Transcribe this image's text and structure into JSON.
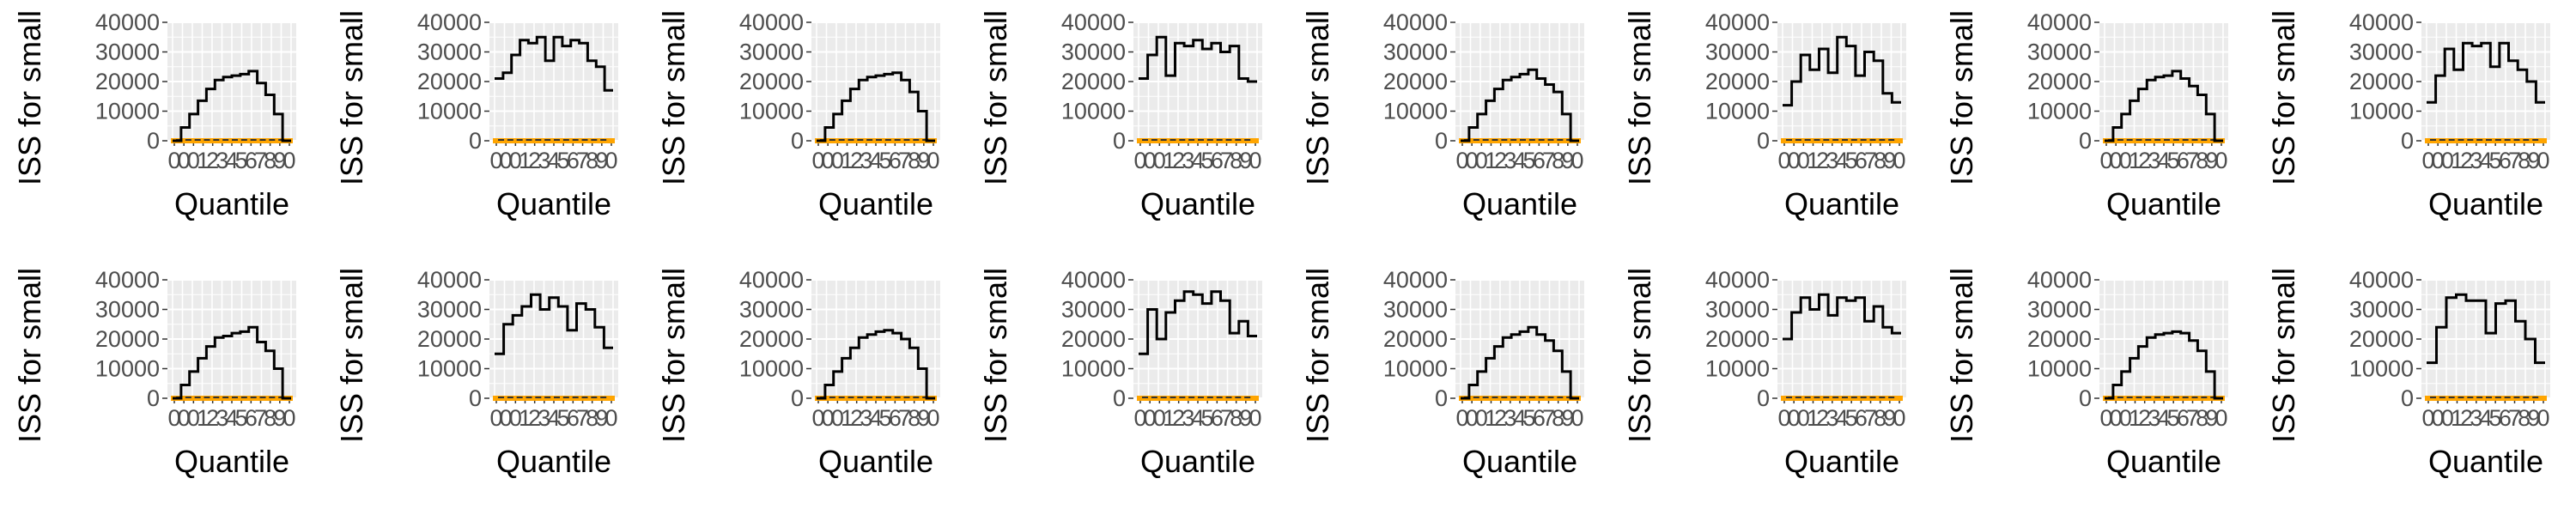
{
  "colors": {
    "panel_bg": "#EBEBEB",
    "gridline": "#FFFFFF",
    "step_line": "#000000",
    "band_fill": "#FFA500",
    "axis_text": "#4D4D4D",
    "title_text": "#000000"
  },
  "chart_data": [
    {
      "type": "line",
      "xlabel": "Quantile",
      "ylabel": "ISS for small in",
      "ylim": [
        0,
        40000
      ],
      "yticks": [
        "40000",
        "30000",
        "20000",
        "10000",
        "0"
      ],
      "xticks": [
        "0",
        "0",
        "0",
        "1",
        "2",
        "3",
        "4",
        "5",
        "6",
        "7",
        "8",
        "9",
        "0"
      ],
      "grid": true,
      "series": [
        {
          "values": [
            0,
            4500,
            9000,
            13500,
            17500,
            20500,
            21500,
            22000,
            22500,
            23500,
            19500,
            15500,
            9000,
            0
          ]
        }
      ]
    },
    {
      "type": "line",
      "xlabel": "Quantile",
      "ylabel": "ISS for small in",
      "ylim": [
        0,
        40000
      ],
      "yticks": [
        "40000",
        "30000",
        "20000",
        "10000",
        "0"
      ],
      "xticks": [
        "0",
        "0",
        "0",
        "1",
        "2",
        "3",
        "4",
        "5",
        "6",
        "7",
        "8",
        "9",
        "0"
      ],
      "grid": true,
      "series": [
        {
          "values": [
            21000,
            23000,
            29000,
            34000,
            33000,
            35000,
            27000,
            35000,
            32000,
            34000,
            33000,
            27000,
            25000,
            17000
          ]
        }
      ]
    },
    {
      "type": "line",
      "xlabel": "Quantile",
      "ylabel": "ISS for small in",
      "ylim": [
        0,
        40000
      ],
      "yticks": [
        "40000",
        "30000",
        "20000",
        "10000",
        "0"
      ],
      "xticks": [
        "0",
        "0",
        "0",
        "1",
        "2",
        "3",
        "4",
        "5",
        "6",
        "7",
        "8",
        "9",
        "0"
      ],
      "grid": true,
      "series": [
        {
          "values": [
            0,
            4500,
            9000,
            13500,
            17500,
            20500,
            21500,
            22000,
            22500,
            23000,
            20500,
            16500,
            10000,
            0
          ]
        }
      ]
    },
    {
      "type": "line",
      "xlabel": "Quantile",
      "ylabel": "ISS for small in",
      "ylim": [
        0,
        40000
      ],
      "yticks": [
        "40000",
        "30000",
        "20000",
        "10000",
        "0"
      ],
      "xticks": [
        "0",
        "0",
        "0",
        "1",
        "2",
        "3",
        "4",
        "5",
        "6",
        "7",
        "8",
        "9",
        "0"
      ],
      "grid": true,
      "series": [
        {
          "values": [
            21000,
            29000,
            35000,
            22000,
            33000,
            32000,
            34000,
            31000,
            33000,
            30000,
            32000,
            21000,
            20000
          ]
        }
      ]
    },
    {
      "type": "line",
      "xlabel": "Quantile",
      "ylabel": "ISS for small in",
      "ylim": [
        0,
        40000
      ],
      "yticks": [
        "40000",
        "30000",
        "20000",
        "10000",
        "0"
      ],
      "xticks": [
        "0",
        "0",
        "0",
        "1",
        "2",
        "3",
        "4",
        "5",
        "6",
        "7",
        "8",
        "9",
        "0"
      ],
      "grid": true,
      "series": [
        {
          "values": [
            0,
            4500,
            9000,
            13500,
            17500,
            20500,
            21500,
            22500,
            24000,
            21000,
            19000,
            16500,
            9000,
            0
          ]
        }
      ]
    },
    {
      "type": "line",
      "xlabel": "Quantile",
      "ylabel": "ISS for small in",
      "ylim": [
        0,
        40000
      ],
      "yticks": [
        "40000",
        "30000",
        "20000",
        "10000",
        "0"
      ],
      "xticks": [
        "0",
        "0",
        "0",
        "1",
        "2",
        "3",
        "4",
        "5",
        "6",
        "7",
        "8",
        "9",
        "0"
      ],
      "grid": true,
      "series": [
        {
          "values": [
            12000,
            20000,
            29000,
            24000,
            31000,
            23000,
            35000,
            32000,
            22000,
            30000,
            27000,
            16000,
            13000
          ]
        }
      ]
    },
    {
      "type": "line",
      "xlabel": "Quantile",
      "ylabel": "ISS for small in",
      "ylim": [
        0,
        40000
      ],
      "yticks": [
        "40000",
        "30000",
        "20000",
        "10000",
        "0"
      ],
      "xticks": [
        "0",
        "0",
        "0",
        "1",
        "2",
        "3",
        "4",
        "5",
        "6",
        "7",
        "8",
        "9",
        "0"
      ],
      "grid": true,
      "series": [
        {
          "values": [
            0,
            4500,
            9000,
            13500,
            17500,
            20500,
            21500,
            22000,
            23500,
            21000,
            18500,
            15500,
            9000,
            0
          ]
        }
      ]
    },
    {
      "type": "line",
      "xlabel": "Quantile",
      "ylabel": "ISS for small in",
      "ylim": [
        0,
        40000
      ],
      "yticks": [
        "40000",
        "30000",
        "20000",
        "10000",
        "0"
      ],
      "xticks": [
        "0",
        "0",
        "0",
        "1",
        "2",
        "3",
        "4",
        "5",
        "6",
        "7",
        "8",
        "9",
        "0"
      ],
      "grid": true,
      "series": [
        {
          "values": [
            13000,
            22000,
            31000,
            24000,
            33000,
            32000,
            33000,
            25000,
            33000,
            27000,
            24000,
            20000,
            13000
          ]
        }
      ]
    },
    {
      "type": "line",
      "xlabel": "Quantile",
      "ylabel": "ISS for small in",
      "ylim": [
        0,
        40000
      ],
      "yticks": [
        "40000",
        "30000",
        "20000",
        "10000",
        "0"
      ],
      "xticks": [
        "0",
        "0",
        "0",
        "1",
        "2",
        "3",
        "4",
        "5",
        "6",
        "7",
        "8",
        "9",
        "0"
      ],
      "grid": true,
      "series": [
        {
          "values": [
            0,
            4500,
            9000,
            13500,
            17500,
            20500,
            21000,
            22000,
            22500,
            24000,
            19000,
            16000,
            10000,
            0
          ]
        }
      ]
    },
    {
      "type": "line",
      "xlabel": "Quantile",
      "ylabel": "ISS for small in",
      "ylim": [
        0,
        40000
      ],
      "yticks": [
        "40000",
        "30000",
        "20000",
        "10000",
        "0"
      ],
      "xticks": [
        "0",
        "0",
        "0",
        "1",
        "2",
        "3",
        "4",
        "5",
        "6",
        "7",
        "8",
        "9",
        "0"
      ],
      "grid": true,
      "series": [
        {
          "values": [
            15000,
            25000,
            28000,
            31000,
            35000,
            30000,
            34000,
            31000,
            23000,
            32000,
            30000,
            24000,
            17000
          ]
        }
      ]
    },
    {
      "type": "line",
      "xlabel": "Quantile",
      "ylabel": "ISS for small in",
      "ylim": [
        0,
        40000
      ],
      "yticks": [
        "40000",
        "30000",
        "20000",
        "10000",
        "0"
      ],
      "xticks": [
        "0",
        "0",
        "0",
        "1",
        "2",
        "3",
        "4",
        "5",
        "6",
        "7",
        "8",
        "9",
        "0"
      ],
      "grid": true,
      "series": [
        {
          "values": [
            0,
            4500,
            9000,
            13500,
            17000,
            20500,
            21500,
            22500,
            23000,
            22000,
            20000,
            17000,
            10000,
            0
          ]
        }
      ]
    },
    {
      "type": "line",
      "xlabel": "Quantile",
      "ylabel": "ISS for small in",
      "ylim": [
        0,
        40000
      ],
      "yticks": [
        "40000",
        "30000",
        "20000",
        "10000",
        "0"
      ],
      "xticks": [
        "0",
        "0",
        "0",
        "1",
        "2",
        "3",
        "4",
        "5",
        "6",
        "7",
        "8",
        "9",
        "0"
      ],
      "grid": true,
      "series": [
        {
          "values": [
            15000,
            30000,
            20000,
            29000,
            33000,
            36000,
            35000,
            32000,
            36000,
            33000,
            22000,
            26000,
            21000
          ]
        }
      ]
    },
    {
      "type": "line",
      "xlabel": "Quantile",
      "ylabel": "ISS for small in",
      "ylim": [
        0,
        40000
      ],
      "yticks": [
        "40000",
        "30000",
        "20000",
        "10000",
        "0"
      ],
      "xticks": [
        "0",
        "0",
        "0",
        "1",
        "2",
        "3",
        "4",
        "5",
        "6",
        "7",
        "8",
        "9",
        "0"
      ],
      "grid": true,
      "series": [
        {
          "values": [
            0,
            4500,
            9000,
            13500,
            17500,
            20500,
            21500,
            22500,
            24000,
            21500,
            19500,
            16000,
            9000,
            0
          ]
        }
      ]
    },
    {
      "type": "line",
      "xlabel": "Quantile",
      "ylabel": "ISS for small in",
      "ylim": [
        0,
        40000
      ],
      "yticks": [
        "40000",
        "30000",
        "20000",
        "10000",
        "0"
      ],
      "xticks": [
        "0",
        "0",
        "0",
        "1",
        "2",
        "3",
        "4",
        "5",
        "6",
        "7",
        "8",
        "9",
        "0"
      ],
      "grid": true,
      "series": [
        {
          "values": [
            20000,
            29000,
            34000,
            30000,
            35000,
            28000,
            34000,
            33000,
            34000,
            26000,
            31000,
            24000,
            22000
          ]
        }
      ]
    },
    {
      "type": "line",
      "xlabel": "Quantile",
      "ylabel": "ISS for small in",
      "ylim": [
        0,
        40000
      ],
      "yticks": [
        "40000",
        "30000",
        "20000",
        "10000",
        "0"
      ],
      "xticks": [
        "0",
        "0",
        "0",
        "1",
        "2",
        "3",
        "4",
        "5",
        "6",
        "7",
        "8",
        "9",
        "0"
      ],
      "grid": true,
      "series": [
        {
          "values": [
            0,
            4500,
            9000,
            13500,
            17500,
            20500,
            21500,
            22000,
            22500,
            22000,
            19500,
            16000,
            9000,
            0
          ]
        }
      ]
    },
    {
      "type": "line",
      "xlabel": "Quantile",
      "ylabel": "ISS for small in",
      "ylim": [
        0,
        40000
      ],
      "yticks": [
        "40000",
        "30000",
        "20000",
        "10000",
        "0"
      ],
      "xticks": [
        "0",
        "0",
        "0",
        "1",
        "2",
        "3",
        "4",
        "5",
        "6",
        "7",
        "8",
        "9",
        "0"
      ],
      "grid": true,
      "series": [
        {
          "values": [
            12000,
            24000,
            34000,
            35000,
            33000,
            33000,
            22000,
            32000,
            33000,
            26000,
            20000,
            12000
          ]
        }
      ]
    }
  ]
}
